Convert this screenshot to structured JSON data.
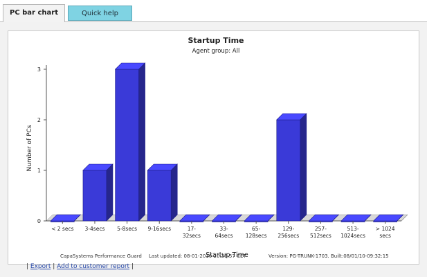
{
  "tabs": [
    {
      "label": "PC bar chart",
      "active": true
    },
    {
      "label": "Quick help",
      "active": false
    }
  ],
  "chart_data": {
    "type": "bar",
    "title": "Startup Time",
    "subtitle": "Agent group: All",
    "xlabel": "Startup Time",
    "ylabel": "Number of PCs",
    "ylim": [
      0,
      3
    ],
    "yticks": [
      "0",
      "1",
      "2",
      "3"
    ],
    "categories": [
      [
        "< 2 secs"
      ],
      [
        "3-4secs"
      ],
      [
        "5-8secs"
      ],
      [
        "9-16secs"
      ],
      [
        "17-",
        "32secs"
      ],
      [
        "33-",
        "64secs"
      ],
      [
        "65-",
        "128secs"
      ],
      [
        "129-",
        "256secs"
      ],
      [
        "257-",
        "512secs"
      ],
      [
        "513-",
        "1024secs"
      ],
      [
        "> 1024",
        "secs"
      ]
    ],
    "values": [
      0,
      1,
      3,
      1,
      0,
      0,
      0,
      2,
      0,
      0,
      0
    ],
    "bar_color": "#3a3ad8",
    "grid": false
  },
  "footer": {
    "product": "CapaSystems Performance Guard",
    "updated": "Last updated: 08-01-2010 20:29:57 CET",
    "version": "Version: PG-TRUNK-1703.",
    "built": "Built:08/01/10-09:32:15"
  },
  "links": {
    "export": "Export",
    "add_report": "Add to customer report"
  },
  "colors": {
    "tab_active_bg": "#f3f3f3",
    "tab_inactive_bg": "#7fd3e3",
    "panel_bg": "#f2f2f2",
    "link": "#2446a8"
  }
}
